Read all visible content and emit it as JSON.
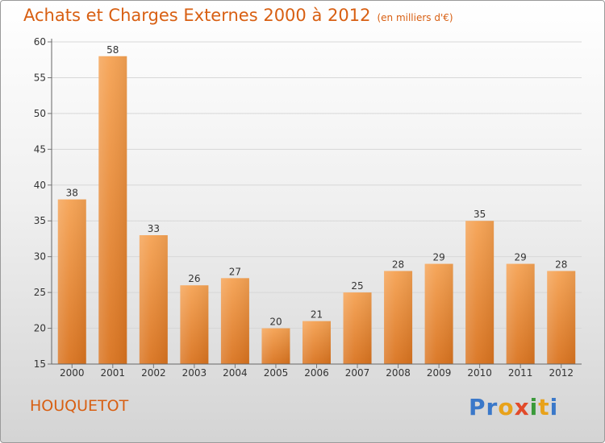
{
  "title": "Achats et Charges Externes 2000 à 2012",
  "title_unit": "(en milliers d'€)",
  "commune": "HOUQUETOT",
  "logo": {
    "text": "Proxiti",
    "colors": [
      "#3a78c9",
      "#3a78c9",
      "#e8a21a",
      "#e24a2a",
      "#3a9a3a",
      "#e8a21a",
      "#3a78c9"
    ]
  },
  "colors": {
    "title": "#d85f12",
    "bar_top": "#f5a253",
    "bar_bottom": "#d9731f"
  },
  "chart_data": {
    "type": "bar",
    "title": "Achats et Charges Externes 2000 à 2012",
    "subtitle": "(en milliers d'€)",
    "categories": [
      "2000",
      "2001",
      "2002",
      "2003",
      "2004",
      "2005",
      "2006",
      "2007",
      "2008",
      "2009",
      "2010",
      "2011",
      "2012"
    ],
    "values": [
      38,
      58,
      33,
      26,
      27,
      20,
      21,
      25,
      28,
      29,
      35,
      29,
      28
    ],
    "ylim": [
      15,
      60
    ],
    "yticks": [
      15,
      20,
      25,
      30,
      35,
      40,
      45,
      50,
      55,
      60
    ],
    "grid": true,
    "data_labels": true
  }
}
